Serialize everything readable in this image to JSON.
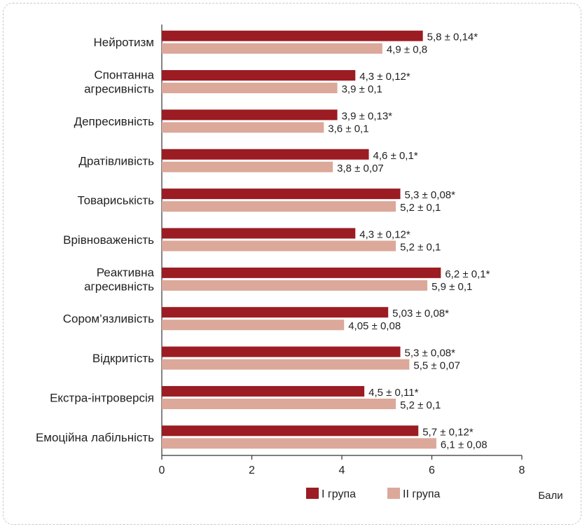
{
  "chart_data": {
    "type": "bar",
    "orientation": "horizontal",
    "categories": [
      [
        "Нейротизм"
      ],
      [
        "Спонтанна",
        "агресивність"
      ],
      [
        "Депресивність"
      ],
      [
        "Дратівливість"
      ],
      [
        "Товариськість"
      ],
      [
        "Врівноваженість"
      ],
      [
        "Реактивна",
        "агресивність"
      ],
      [
        "Сором’язливість"
      ],
      [
        "Відкритість"
      ],
      [
        "Екстра-інтроверсія"
      ],
      [
        "Емоційна лабільність"
      ]
    ],
    "series": [
      {
        "name": "I група",
        "color": "#9b1c22",
        "values": [
          5.8,
          4.3,
          3.9,
          4.6,
          5.3,
          4.3,
          6.2,
          5.03,
          5.3,
          4.5,
          5.7
        ],
        "labels": [
          "5,8 ± 0,14*",
          "4,3 ± 0,12*",
          "3,9 ± 0,13*",
          "4,6 ± 0,1*",
          "5,3 ± 0,08*",
          "4,3 ± 0,12*",
          "6,2 ± 0,1*",
          "5,03 ± 0,08*",
          "5,3 ± 0,08*",
          "4,5 ± 0,11*",
          "5,7 ± 0,12*"
        ]
      },
      {
        "name": "II група",
        "color": "#dba89a",
        "values": [
          4.9,
          3.9,
          3.6,
          3.8,
          5.2,
          5.2,
          5.9,
          4.05,
          5.5,
          5.2,
          6.1
        ],
        "labels": [
          "4,9 ± 0,8",
          "3,9 ± 0,1",
          "3,6 ± 0,1",
          "3,8 ± 0,07",
          "5,2 ± 0,1",
          "5,2 ± 0,1",
          "5,9 ± 0,1",
          "4,05 ± 0,08",
          "5,5 ± 0,07",
          "5,2 ± 0,1",
          "6,1 ± 0,08"
        ]
      }
    ],
    "xlim": [
      0,
      8
    ],
    "xticks": [
      0,
      2,
      4,
      6,
      8
    ],
    "xlabel": "Бали",
    "ylabel": "",
    "grid": false,
    "legend_position": "bottom"
  }
}
